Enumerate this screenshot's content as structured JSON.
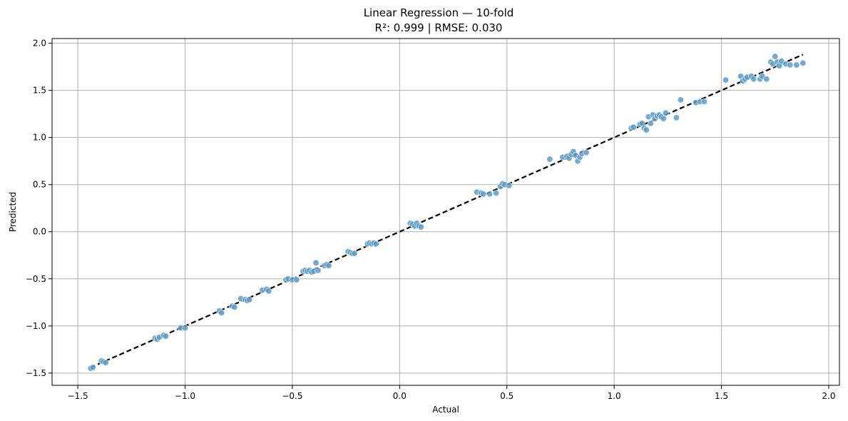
{
  "chart_data": {
    "type": "scatter",
    "title": "Linear Regression — 10-fold",
    "subtitle": "R²: 0.999 | RMSE: 0.030",
    "xlabel": "Actual",
    "ylabel": "Predicted",
    "xlim": [
      -1.62,
      2.05
    ],
    "ylim": [
      -1.63,
      2.05
    ],
    "xticks": [
      -1.5,
      -1.0,
      -0.5,
      0.0,
      0.5,
      1.0,
      1.5,
      2.0
    ],
    "yticks": [
      -1.5,
      -1.0,
      -0.5,
      0.0,
      0.5,
      1.0,
      1.5,
      2.0
    ],
    "xtick_labels": [
      "−1.5",
      "−1.0",
      "−0.5",
      "0.0",
      "0.5",
      "1.0",
      "1.5",
      "2.0"
    ],
    "ytick_labels": [
      "−1.5",
      "−1.0",
      "−0.5",
      "0.0",
      "0.5",
      "1.0",
      "1.5",
      "2.0"
    ],
    "grid": true,
    "point_color": "#5b9bc8",
    "line_color": "#000000",
    "reference_line": {
      "x": [
        -1.44,
        1.88
      ],
      "y": [
        -1.44,
        1.88
      ],
      "style": "dashed"
    },
    "series": [
      {
        "points": [
          [
            -1.44,
            -1.45
          ],
          [
            -1.43,
            -1.44
          ],
          [
            -1.39,
            -1.37
          ],
          [
            -1.38,
            -1.38
          ],
          [
            -1.37,
            -1.39
          ],
          [
            -1.14,
            -1.13
          ],
          [
            -1.13,
            -1.14
          ],
          [
            -1.12,
            -1.12
          ],
          [
            -1.1,
            -1.1
          ],
          [
            -1.09,
            -1.11
          ],
          [
            -1.02,
            -1.02
          ],
          [
            -1.0,
            -1.02
          ],
          [
            -0.84,
            -0.84
          ],
          [
            -0.83,
            -0.86
          ],
          [
            -0.78,
            -0.79
          ],
          [
            -0.77,
            -0.8
          ],
          [
            -0.74,
            -0.71
          ],
          [
            -0.72,
            -0.72
          ],
          [
            -0.71,
            -0.73
          ],
          [
            -0.7,
            -0.72
          ],
          [
            -0.64,
            -0.62
          ],
          [
            -0.62,
            -0.61
          ],
          [
            -0.61,
            -0.63
          ],
          [
            -0.53,
            -0.51
          ],
          [
            -0.52,
            -0.5
          ],
          [
            -0.5,
            -0.51
          ],
          [
            -0.48,
            -0.51
          ],
          [
            -0.45,
            -0.42
          ],
          [
            -0.44,
            -0.41
          ],
          [
            -0.43,
            -0.42
          ],
          [
            -0.42,
            -0.41
          ],
          [
            -0.41,
            -0.43
          ],
          [
            -0.4,
            -0.42
          ],
          [
            -0.39,
            -0.33
          ],
          [
            -0.38,
            -0.41
          ],
          [
            -0.35,
            -0.36
          ],
          [
            -0.34,
            -0.35
          ],
          [
            -0.33,
            -0.36
          ],
          [
            -0.24,
            -0.21
          ],
          [
            -0.23,
            -0.22
          ],
          [
            -0.22,
            -0.23
          ],
          [
            -0.21,
            -0.23
          ],
          [
            -0.15,
            -0.13
          ],
          [
            -0.14,
            -0.12
          ],
          [
            -0.13,
            -0.13
          ],
          [
            -0.12,
            -0.12
          ],
          [
            -0.11,
            -0.13
          ],
          [
            0.05,
            0.09
          ],
          [
            0.06,
            0.08
          ],
          [
            0.07,
            0.06
          ],
          [
            0.08,
            0.09
          ],
          [
            0.09,
            0.06
          ],
          [
            0.1,
            0.05
          ],
          [
            0.36,
            0.42
          ],
          [
            0.38,
            0.41
          ],
          [
            0.39,
            0.4
          ],
          [
            0.42,
            0.4
          ],
          [
            0.45,
            0.41
          ],
          [
            0.47,
            0.48
          ],
          [
            0.48,
            0.51
          ],
          [
            0.49,
            0.5
          ],
          [
            0.51,
            0.49
          ],
          [
            0.7,
            0.77
          ],
          [
            0.76,
            0.79
          ],
          [
            0.78,
            0.8
          ],
          [
            0.79,
            0.78
          ],
          [
            0.8,
            0.82
          ],
          [
            0.81,
            0.85
          ],
          [
            0.82,
            0.81
          ],
          [
            0.83,
            0.75
          ],
          [
            0.84,
            0.79
          ],
          [
            0.85,
            0.83
          ],
          [
            0.87,
            0.84
          ],
          [
            1.08,
            1.1
          ],
          [
            1.09,
            1.11
          ],
          [
            1.12,
            1.14
          ],
          [
            1.13,
            1.15
          ],
          [
            1.14,
            1.1
          ],
          [
            1.15,
            1.08
          ],
          [
            1.16,
            1.22
          ],
          [
            1.17,
            1.15
          ],
          [
            1.18,
            1.24
          ],
          [
            1.19,
            1.2
          ],
          [
            1.2,
            1.23
          ],
          [
            1.21,
            1.24
          ],
          [
            1.22,
            1.22
          ],
          [
            1.23,
            1.2
          ],
          [
            1.24,
            1.26
          ],
          [
            1.29,
            1.21
          ],
          [
            1.31,
            1.4
          ],
          [
            1.38,
            1.37
          ],
          [
            1.4,
            1.38
          ],
          [
            1.42,
            1.38
          ],
          [
            1.52,
            1.61
          ],
          [
            1.59,
            1.65
          ],
          [
            1.6,
            1.6
          ],
          [
            1.61,
            1.62
          ],
          [
            1.62,
            1.64
          ],
          [
            1.64,
            1.65
          ],
          [
            1.65,
            1.62
          ],
          [
            1.68,
            1.62
          ],
          [
            1.69,
            1.65
          ],
          [
            1.71,
            1.62
          ],
          [
            1.73,
            1.8
          ],
          [
            1.74,
            1.78
          ],
          [
            1.75,
            1.86
          ],
          [
            1.76,
            1.8
          ],
          [
            1.77,
            1.76
          ],
          [
            1.78,
            1.81
          ],
          [
            1.8,
            1.78
          ],
          [
            1.82,
            1.77
          ],
          [
            1.85,
            1.77
          ],
          [
            1.88,
            1.79
          ]
        ]
      }
    ]
  }
}
